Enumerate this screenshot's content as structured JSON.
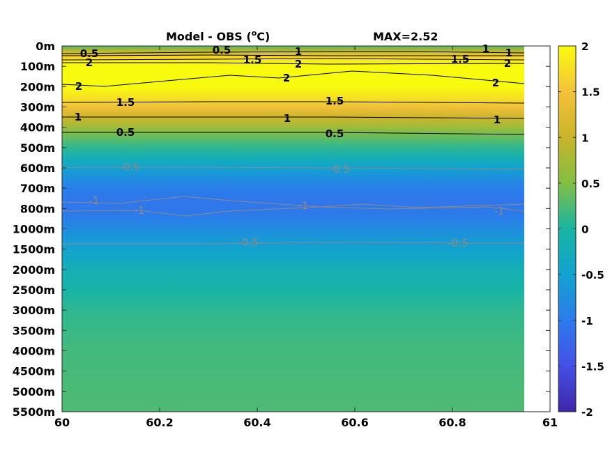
{
  "title": "Model - OBS (",
  "title_degree": "o",
  "title_unit": "C)",
  "max_label": "MAX=2.52",
  "chart_data": {
    "type": "heatmap",
    "x_ticks": [
      "60",
      "60.2",
      "60.4",
      "60.6",
      "60.8",
      "61"
    ],
    "xlim": [
      60,
      61
    ],
    "x_data_max": 60.94,
    "y_ticks": [
      "0m",
      "100m",
      "200m",
      "300m",
      "400m",
      "500m",
      "600m",
      "700m",
      "800m",
      "1000m",
      "1500m",
      "2000m",
      "2500m",
      "3000m",
      "3500m",
      "4000m",
      "4500m",
      "5000m",
      "5500m"
    ],
    "y_reversed": true,
    "y_levels": [
      0,
      100,
      200,
      300,
      400,
      500,
      600,
      700,
      800,
      1000,
      1500,
      2000,
      2500,
      3000,
      3500,
      4000,
      4500,
      5000,
      5500
    ],
    "colorbar": {
      "ticks": [
        "2",
        "1.5",
        "1",
        "0.5",
        "0",
        "-0.5",
        "-1",
        "-1.5",
        "-2"
      ],
      "range": [
        -2,
        2
      ],
      "colormap": "parula"
    },
    "profile": {
      "depth": [
        0,
        25,
        50,
        75,
        100,
        150,
        200,
        250,
        300,
        350,
        400,
        450,
        500,
        550,
        600,
        650,
        700,
        750,
        800,
        900,
        1000,
        1200,
        1500,
        1750,
        2000,
        2500,
        3000,
        3500,
        4000,
        4500,
        5000,
        5500
      ],
      "value": [
        0.3,
        0.9,
        1.6,
        1.9,
        2.2,
        2.3,
        2.1,
        1.8,
        1.45,
        1.05,
        0.7,
        0.35,
        0.1,
        -0.2,
        -0.5,
        -0.75,
        -0.95,
        -1.05,
        -1.05,
        -0.95,
        -0.8,
        -0.65,
        -0.5,
        -0.35,
        -0.2,
        -0.05,
        0.1,
        0.15,
        0.2,
        0.22,
        0.24,
        0.25
      ]
    },
    "contours": [
      {
        "level": "0.5",
        "color": "#000000",
        "labels": [
          "0.5",
          "0.5"
        ]
      },
      {
        "level": "1",
        "color": "#000000",
        "labels": [
          "1",
          "1",
          "1"
        ]
      },
      {
        "level": "1.5",
        "color": "#000000",
        "labels": [
          "1.5",
          "1.5"
        ]
      },
      {
        "level": "2",
        "color": "#000000",
        "labels": [
          "2",
          "2",
          "2"
        ]
      },
      {
        "level": "2",
        "color": "#000000",
        "labels": [
          "2",
          "2",
          "2"
        ]
      },
      {
        "level": "1.5",
        "color": "#000000",
        "labels": [
          "1.5",
          "1.5"
        ]
      },
      {
        "level": "1",
        "color": "#000000",
        "labels": [
          "1",
          "1",
          "1"
        ]
      },
      {
        "level": "0.5",
        "color": "#000000",
        "labels": [
          "0.5",
          "0.5"
        ]
      },
      {
        "level": "-0.5",
        "color": "#8a8a8a",
        "labels": [
          "-0.5",
          "-0.5"
        ]
      },
      {
        "level": "-1",
        "color": "#8a8a8a",
        "labels": [
          "-1",
          "-1",
          "-1",
          "-1"
        ]
      },
      {
        "level": "-0.5",
        "color": "#8a8a8a",
        "labels": [
          "-0.5",
          "-0.5"
        ]
      }
    ]
  }
}
